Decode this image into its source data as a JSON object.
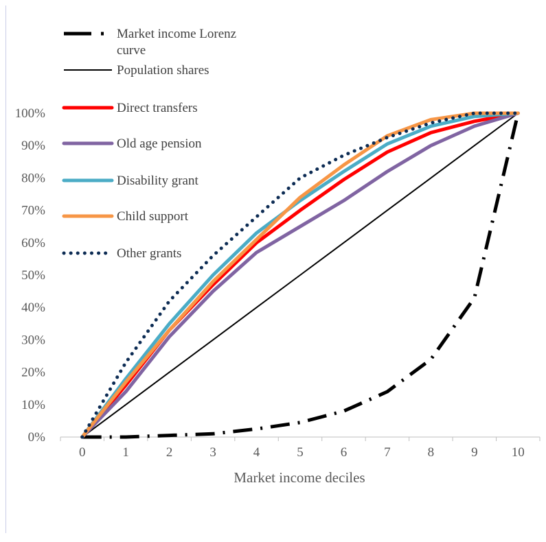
{
  "chart_data": {
    "type": "line",
    "title": "",
    "xlabel": "Market income deciles",
    "ylabel": "",
    "x": [
      0,
      1,
      2,
      3,
      4,
      5,
      6,
      7,
      8,
      9,
      10
    ],
    "xlim": [
      -0.5,
      10.5
    ],
    "ylim": [
      0,
      100
    ],
    "y_tick_labels": [
      "0%",
      "10%",
      "20%",
      "30%",
      "40%",
      "50%",
      "60%",
      "70%",
      "80%",
      "90%",
      "100%"
    ],
    "x_tick_labels": [
      "0",
      "1",
      "2",
      "3",
      "4",
      "5",
      "6",
      "7",
      "8",
      "9",
      "10"
    ],
    "grid": false,
    "legend_position": "top-left",
    "series": [
      {
        "name": "Market income Lorenz curve",
        "color": "#000000",
        "style": "dash-dot",
        "values": [
          0,
          0,
          0.5,
          1,
          2.5,
          4.5,
          8,
          14,
          24,
          43,
          100
        ]
      },
      {
        "name": "Population shares",
        "color": "#000000",
        "style": "solid-thin",
        "values": [
          0,
          10,
          20,
          30,
          40,
          50,
          60,
          70,
          80,
          90,
          100
        ]
      },
      {
        "name": "Direct transfers",
        "color": "#ff0000",
        "style": "solid",
        "values": [
          0,
          16,
          33,
          47,
          60,
          70,
          79.5,
          88,
          94,
          97.5,
          100
        ]
      },
      {
        "name": "Old age pension",
        "color": "#8064a2",
        "style": "solid",
        "values": [
          0,
          14,
          31,
          45,
          57,
          65,
          73,
          82,
          90,
          96,
          100
        ]
      },
      {
        "name": "Disability grant",
        "color": "#4bacc6",
        "style": "solid",
        "values": [
          0,
          18,
          35,
          50,
          63,
          73,
          82,
          90.5,
          96,
          99,
          100
        ]
      },
      {
        "name": "Child support",
        "color": "#f79646",
        "style": "solid",
        "values": [
          0,
          17,
          33,
          48,
          61,
          74,
          84,
          93,
          98,
          100,
          100
        ]
      },
      {
        "name": "Other grants",
        "color": "#0d2c54",
        "style": "dotted",
        "values": [
          0,
          23,
          42,
          56,
          68,
          80,
          87,
          92.5,
          97,
          100,
          100
        ]
      }
    ]
  }
}
